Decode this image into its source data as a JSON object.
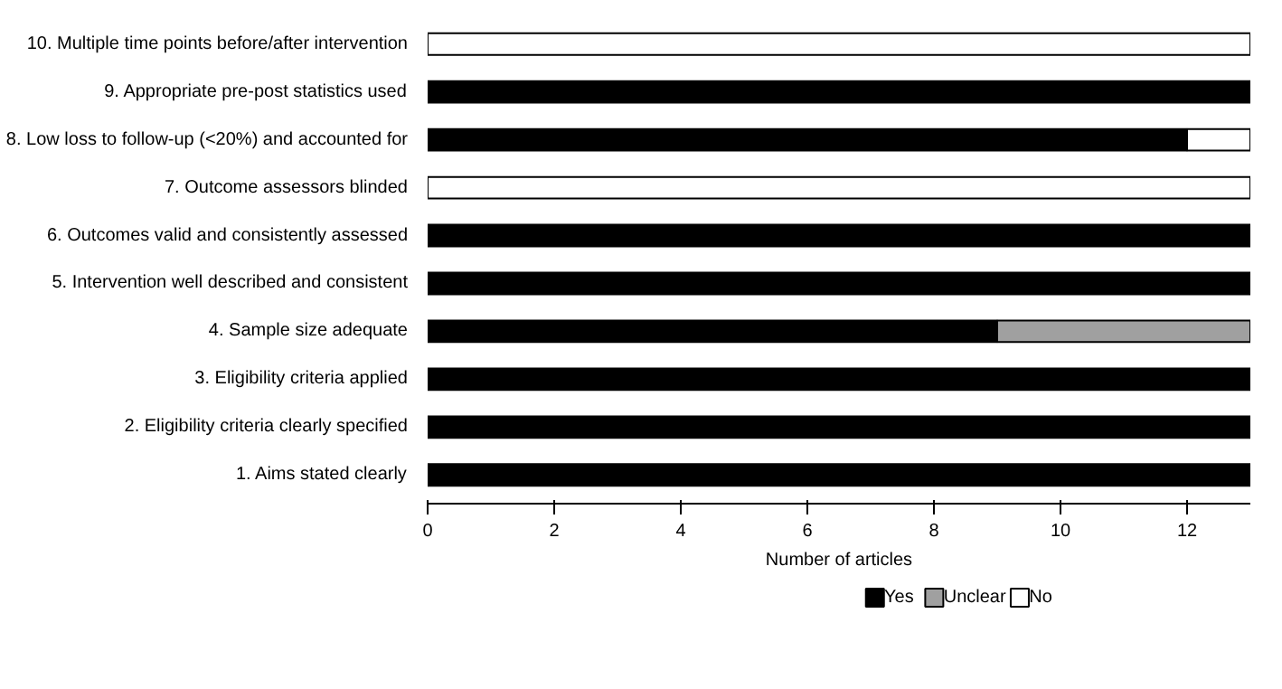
{
  "chart_data": {
    "type": "bar",
    "orientation": "horizontal",
    "stacked": true,
    "categories": [
      "10. Multiple time points before/after intervention",
      "9. Appropriate pre-post statistics used",
      "8. Low loss to follow-up (<20%) and accounted for",
      "7. Outcome assessors blinded",
      "6. Outcomes valid and consistently assessed",
      "5. Intervention well described and consistent",
      "4. Sample size adequate",
      "3. Eligibility criteria applied",
      "2. Eligibility criteria clearly specified",
      "1. Aims stated clearly"
    ],
    "series": [
      {
        "name": "Yes",
        "color": "#000000",
        "values": [
          0,
          13,
          12,
          0,
          13,
          13,
          9,
          13,
          13,
          13
        ]
      },
      {
        "name": "Unclear",
        "color": "#a0a0a0",
        "values": [
          0,
          0,
          0,
          0,
          0,
          0,
          4,
          0,
          0,
          0
        ]
      },
      {
        "name": "No",
        "color": "#ffffff",
        "values": [
          13,
          0,
          1,
          13,
          0,
          0,
          0,
          0,
          0,
          0
        ]
      }
    ],
    "xlabel": "Number of articles",
    "xlim": [
      0,
      13
    ],
    "xticks": [
      0,
      2,
      4,
      6,
      8,
      10,
      12
    ],
    "grid": false,
    "legend": "bottom"
  }
}
